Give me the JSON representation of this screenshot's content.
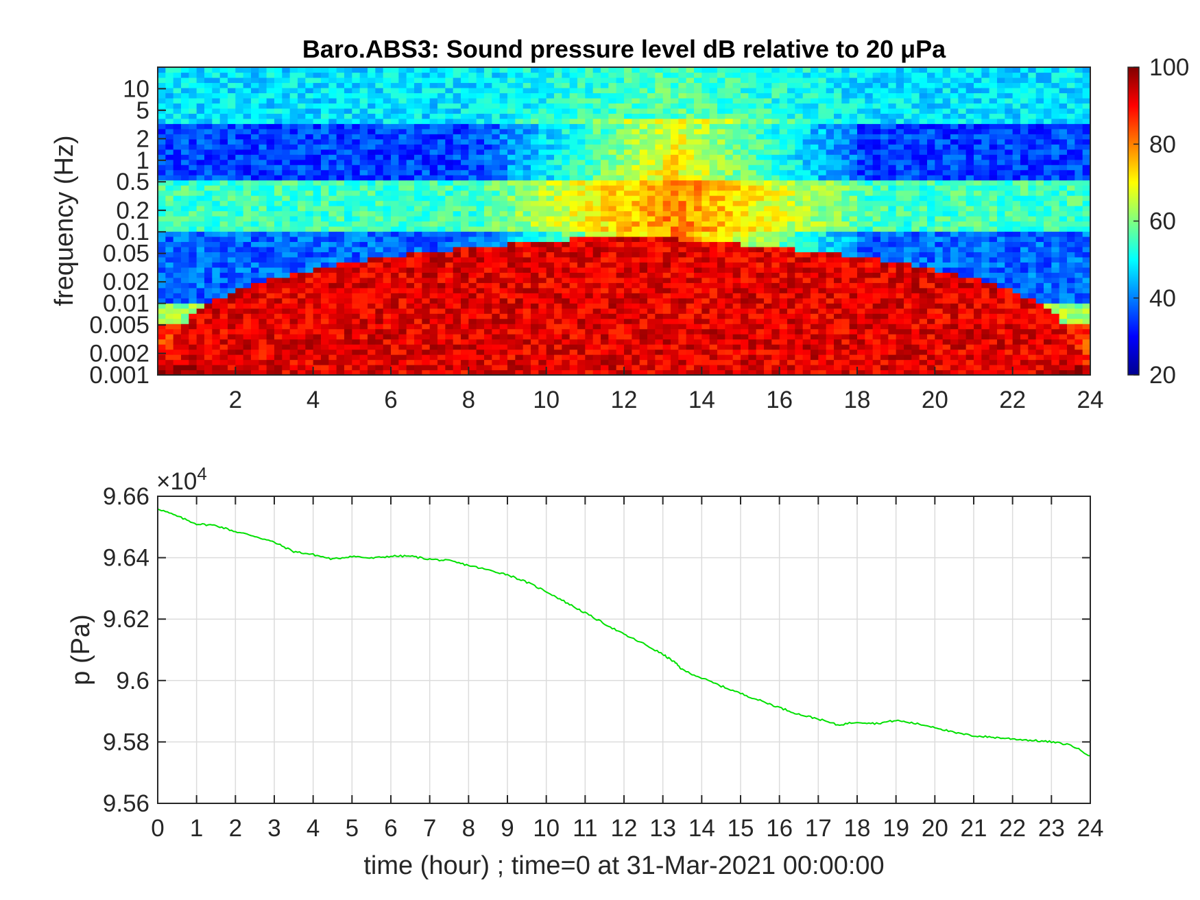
{
  "chart_data": [
    {
      "type": "heatmap",
      "title": "Baro.ABS3: Sound pressure level dB relative to 20 μPa",
      "xlabel": "",
      "ylabel": "frequency (Hz)",
      "xlim": [
        0,
        24
      ],
      "x_ticks": [
        "2",
        "4",
        "6",
        "8",
        "10",
        "12",
        "14",
        "16",
        "18",
        "20",
        "22",
        "24"
      ],
      "y_scale": "log",
      "ylim": [
        0.001,
        20
      ],
      "y_ticks": [
        "0.001",
        "0.002",
        "0.005",
        "0.01",
        "0.02",
        "0.05",
        "0.1",
        "0.2",
        "0.5",
        "1",
        "2",
        "5",
        "10"
      ],
      "colorbar": {
        "colormap": "jet",
        "range": [
          20,
          100
        ],
        "ticks": [
          "20",
          "40",
          "60",
          "80",
          "100"
        ]
      },
      "description_bands": [
        {
          "freq_range_hz": [
            3,
            20
          ],
          "level_db": 48
        },
        {
          "freq_range_hz": [
            0.5,
            3
          ],
          "level_db": 35
        },
        {
          "freq_range_hz": [
            0.1,
            0.5
          ],
          "level_db": 55
        },
        {
          "freq_range_hz": [
            0.01,
            0.1
          ],
          "level_db": 38
        },
        {
          "freq_range_hz": [
            0.001,
            0.005
          ],
          "level_db": 85
        }
      ],
      "active_period_hours": [
        9,
        17
      ],
      "active_peak_hour": 13.3
    },
    {
      "type": "line",
      "xlabel": "time (hour) ; time=0 at 31-Mar-2021 00:00:00",
      "ylabel": "p (Pa)",
      "exponent_label": "×10",
      "exponent_power": "4",
      "xlim": [
        0,
        24
      ],
      "ylim": [
        9.56,
        9.66
      ],
      "x_ticks": [
        "0",
        "1",
        "2",
        "3",
        "4",
        "5",
        "6",
        "7",
        "8",
        "9",
        "10",
        "11",
        "12",
        "13",
        "14",
        "15",
        "16",
        "17",
        "18",
        "19",
        "20",
        "21",
        "22",
        "23",
        "24"
      ],
      "y_ticks": [
        "9.56",
        "9.58",
        "9.6",
        "9.62",
        "9.64",
        "9.66"
      ],
      "grid": true,
      "line_color": "#00e000",
      "series": [
        {
          "x": [
            0,
            0.5,
            1,
            1.5,
            2,
            2.5,
            3,
            3.5,
            4,
            4.5,
            5,
            5.5,
            6,
            6.5,
            7,
            7.5,
            8,
            8.5,
            9,
            9.5,
            10,
            10.5,
            11,
            11.5,
            12,
            12.5,
            13,
            13.3,
            13.5,
            14,
            14.5,
            15,
            15.5,
            16,
            16.5,
            17,
            17.5,
            18,
            18.5,
            19,
            19.5,
            20,
            20.5,
            21,
            21.5,
            22,
            22.5,
            23,
            23.5,
            24
          ],
          "y": [
            9.656,
            9.6535,
            9.651,
            9.6505,
            9.6485,
            9.647,
            9.645,
            9.642,
            9.641,
            9.6395,
            9.6405,
            9.6398,
            9.6405,
            9.6405,
            9.6395,
            9.639,
            9.6375,
            9.636,
            9.6345,
            9.632,
            9.629,
            9.6255,
            9.622,
            9.6185,
            9.615,
            9.612,
            9.6085,
            9.606,
            9.6035,
            9.6008,
            9.5982,
            9.5958,
            9.5935,
            9.5912,
            9.589,
            9.5875,
            9.5855,
            9.5865,
            9.586,
            9.587,
            9.586,
            9.5848,
            9.583,
            9.582,
            9.5815,
            9.581,
            9.5805,
            9.58,
            9.579,
            9.5755
          ]
        }
      ]
    }
  ]
}
